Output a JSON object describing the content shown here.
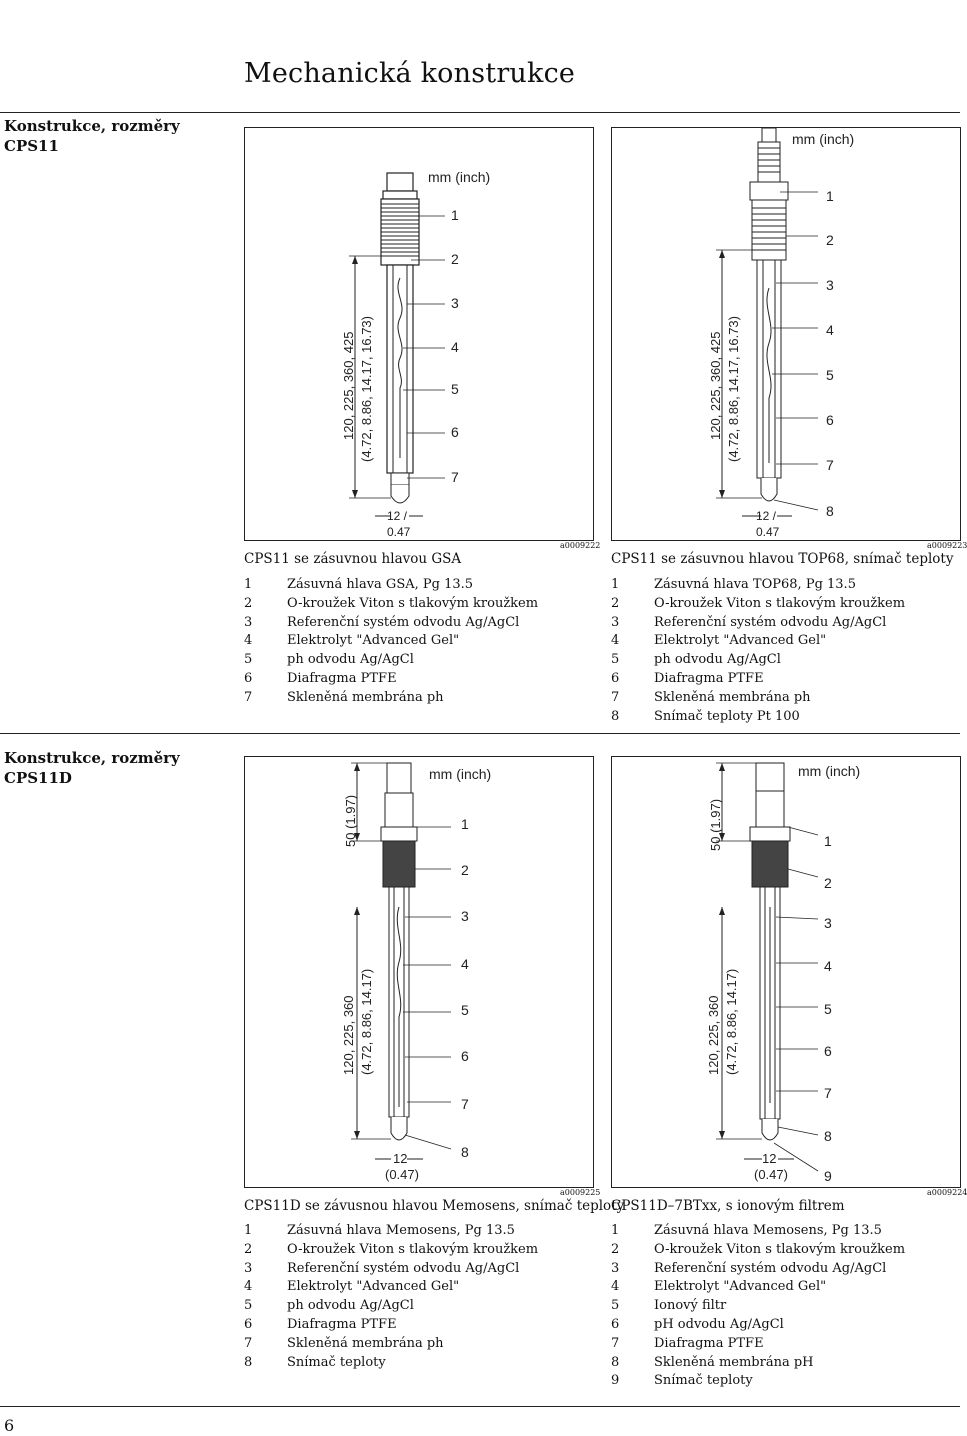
{
  "page_title": "Mechanická konstrukce",
  "page_number": "6",
  "unit_label": "mm (inch)",
  "sections": [
    {
      "label_line1": "Konstrukce, rozměry",
      "label_line2": "CPS11",
      "figures": [
        {
          "dim_line1": "120, 225, 360, 425",
          "dim_line2": "(4.72, 8.86, 14.17, 16.73)",
          "tip_line1": "12 /",
          "tip_line2": "0.47",
          "callouts": [
            "1",
            "2",
            "3",
            "4",
            "5",
            "6",
            "7"
          ],
          "code": "a0009222",
          "caption": "CPS11 se zásuvnou hlavou GSA",
          "items": [
            {
              "n": "1",
              "t": "Zásuvná hlava GSA, Pg 13.5"
            },
            {
              "n": "2",
              "t": "O-kroužek Viton s tlakovým kroužkem"
            },
            {
              "n": "3",
              "t": "Referenční systém odvodu Ag/AgCl"
            },
            {
              "n": "4",
              "t": "Elektrolyt \"Advanced Gel\""
            },
            {
              "n": "5",
              "t": "ph odvodu Ag/AgCl"
            },
            {
              "n": "6",
              "t": "Diafragma PTFE"
            },
            {
              "n": "7",
              "t": "Skleněná membrána ph"
            }
          ]
        },
        {
          "dim_line1": "120, 225, 360, 425",
          "dim_line2": "(4.72, 8.86, 14.17, 16.73)",
          "tip_line1": "12 /",
          "tip_line2": "0.47",
          "callouts": [
            "1",
            "2",
            "3",
            "4",
            "5",
            "6",
            "7",
            "8"
          ],
          "code": "a0009223",
          "caption": "CPS11 se zásuvnou hlavou TOP68, snímač teploty",
          "items": [
            {
              "n": "1",
              "t": "Zásuvná hlava TOP68, Pg 13.5"
            },
            {
              "n": "2",
              "t": "O-kroužek Viton s tlakovým kroužkem"
            },
            {
              "n": "3",
              "t": "Referenční systém odvodu Ag/AgCl"
            },
            {
              "n": "4",
              "t": "Elektrolyt \"Advanced Gel\""
            },
            {
              "n": "5",
              "t": "ph odvodu Ag/AgCl"
            },
            {
              "n": "6",
              "t": "Diafragma PTFE"
            },
            {
              "n": "7",
              "t": "Skleněná membrána ph"
            },
            {
              "n": "8",
              "t": "Snímač teploty Pt 100"
            }
          ]
        }
      ]
    },
    {
      "label_line1": "Konstrukce, rozměry",
      "label_line2": "CPS11D",
      "figures": [
        {
          "head_dim": "50 (1.97)",
          "dim_line1": "120, 225, 360",
          "dim_line2": "(4.72, 8.86, 14.17)",
          "tip_line1": "12",
          "tip_line2": "(0.47)",
          "callouts": [
            "1",
            "2",
            "3",
            "4",
            "5",
            "6",
            "7",
            "8"
          ],
          "code": "a0009225",
          "caption": "CPS11D se závusnou hlavou Memosens, snímač teploty",
          "items": [
            {
              "n": "1",
              "t": "Zásuvná hlava Memosens, Pg 13.5"
            },
            {
              "n": "2",
              "t": "O-kroužek Viton s tlakovým kroužkem"
            },
            {
              "n": "3",
              "t": "Referenční systém odvodu Ag/AgCl"
            },
            {
              "n": "4",
              "t": "Elektrolyt \"Advanced Gel\""
            },
            {
              "n": "5",
              "t": "ph odvodu Ag/AgCl"
            },
            {
              "n": "6",
              "t": "Diafragma PTFE"
            },
            {
              "n": "7",
              "t": "Skleněná membrána ph"
            },
            {
              "n": "8",
              "t": "Snímač teploty"
            }
          ]
        },
        {
          "head_dim": "50 (1.97)",
          "dim_line1": "120, 225, 360",
          "dim_line2": "(4.72, 8.86, 14.17)",
          "tip_line1": "12",
          "tip_line2": "(0.47)",
          "callouts": [
            "1",
            "2",
            "3",
            "4",
            "5",
            "6",
            "7",
            "8",
            "9"
          ],
          "code": "a0009224",
          "caption": "CPS11D–7BTxx, s ionovým filtrem",
          "items": [
            {
              "n": "1",
              "t": "Zásuvná hlava Memosens, Pg 13.5"
            },
            {
              "n": "2",
              "t": "O-kroužek Viton s tlakovým kroužkem"
            },
            {
              "n": "3",
              "t": "Referenční systém odvodu Ag/AgCl"
            },
            {
              "n": "4",
              "t": "Elektrolyt \"Advanced Gel\""
            },
            {
              "n": "5",
              "t": "Ionový filtr"
            },
            {
              "n": "6",
              "t": "pH odvodu Ag/AgCl"
            },
            {
              "n": "7",
              "t": "Diafragma PTFE"
            },
            {
              "n": "8",
              "t": "Skleněná membrána pH"
            },
            {
              "n": "9",
              "t": "Snímač teploty"
            }
          ]
        }
      ]
    }
  ]
}
